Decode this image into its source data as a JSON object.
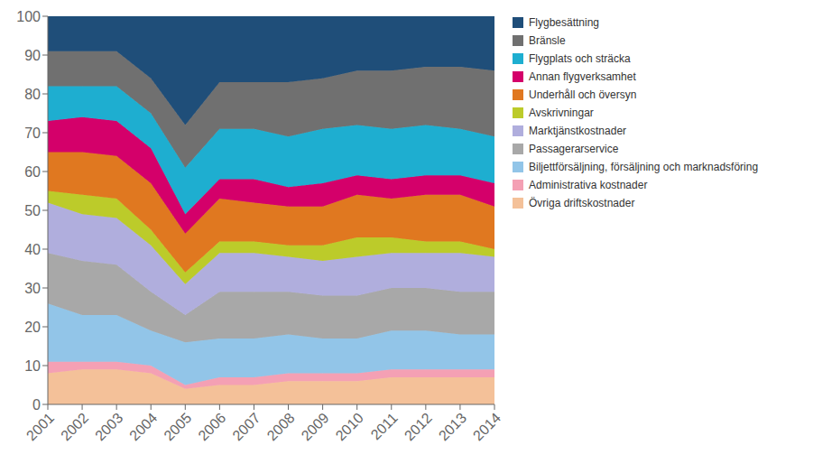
{
  "chart_data": {
    "type": "area",
    "stacked": true,
    "x": [
      2001,
      2002,
      2003,
      2004,
      2005,
      2006,
      2007,
      2008,
      2009,
      2010,
      2011,
      2012,
      2013,
      2014
    ],
    "xlim": [
      2001,
      2014
    ],
    "xticks": [
      2001,
      2002,
      2003,
      2004,
      2005,
      2006,
      2007,
      2008,
      2009,
      2010,
      2011,
      2012,
      2013,
      2014
    ],
    "ylim": [
      0,
      100
    ],
    "yticks": [
      0,
      10,
      20,
      30,
      40,
      50,
      60,
      70,
      80,
      90,
      100
    ],
    "grid": false,
    "legend": "right",
    "series": [
      {
        "name": "Övriga driftskostnader",
        "color": "#F4C199",
        "values": [
          8,
          9,
          9,
          8,
          4,
          5,
          5,
          6,
          6,
          6,
          7,
          7,
          7,
          7
        ]
      },
      {
        "name": "Administrativa kostnader",
        "color": "#F4A0B4",
        "values": [
          3,
          2,
          2,
          2,
          1,
          2,
          2,
          2,
          2,
          2,
          2,
          2,
          2,
          2
        ]
      },
      {
        "name": "Biljettförsäljning, försäljning och marknadsföring",
        "color": "#92C5E8",
        "values": [
          15,
          12,
          12,
          9,
          11,
          10,
          10,
          10,
          9,
          9,
          10,
          10,
          9,
          9
        ]
      },
      {
        "name": "Passagerarservice",
        "color": "#A8A8A8",
        "values": [
          13,
          14,
          13,
          10,
          7,
          12,
          12,
          11,
          11,
          11,
          11,
          11,
          11,
          11
        ]
      },
      {
        "name": "Marktjänstkostnader",
        "color": "#B0AEDD",
        "values": [
          13,
          12,
          12,
          12,
          8,
          10,
          10,
          9,
          9,
          10,
          9,
          9,
          10,
          9
        ]
      },
      {
        "name": "Avskrivningar",
        "color": "#BCCB2A",
        "values": [
          3,
          5,
          5,
          4,
          3,
          3,
          3,
          3,
          4,
          5,
          4,
          3,
          3,
          2
        ]
      },
      {
        "name": "Underhåll och översyn",
        "color": "#E07820",
        "values": [
          10,
          11,
          11,
          12,
          10,
          11,
          10,
          10,
          10,
          11,
          10,
          12,
          12,
          11
        ]
      },
      {
        "name": "Annan flygverksamhet",
        "color": "#D4006A",
        "values": [
          8,
          9,
          9,
          9,
          5,
          5,
          6,
          5,
          6,
          5,
          5,
          5,
          5,
          6
        ]
      },
      {
        "name": "Flygplats och sträcka",
        "color": "#1EAED0",
        "values": [
          9,
          8,
          9,
          9,
          12,
          13,
          13,
          13,
          14,
          13,
          13,
          13,
          12,
          12
        ]
      },
      {
        "name": "Bränsle",
        "color": "#707070",
        "values": [
          9,
          9,
          9,
          9,
          11,
          12,
          12,
          14,
          13,
          14,
          15,
          15,
          16,
          17
        ]
      },
      {
        "name": "Flygbesättning",
        "color": "#1F4E79",
        "values": [
          9,
          9,
          9,
          16,
          28,
          17,
          17,
          17,
          16,
          14,
          14,
          13,
          13,
          14
        ]
      }
    ]
  }
}
